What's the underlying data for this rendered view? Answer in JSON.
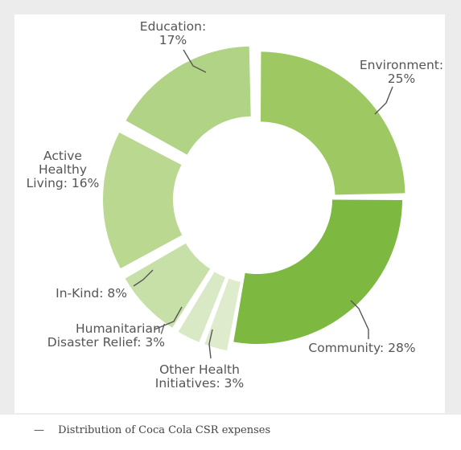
{
  "chart_data": {
    "type": "pie",
    "donut": true,
    "title": "",
    "slices": [
      {
        "label_lines": [
          "Environment:",
          "25%"
        ],
        "value": 25,
        "color": "#9dc862"
      },
      {
        "label_lines": [
          "Community: 28%"
        ],
        "value": 28,
        "color": "#7db940"
      },
      {
        "label_lines": [
          "Other Health",
          "Initiatives: 3%"
        ],
        "value": 3,
        "color": "#deebcc"
      },
      {
        "label_lines": [
          "Humanitarian/",
          "Disaster Relief: 3%"
        ],
        "value": 3,
        "color": "#d9e8c5"
      },
      {
        "label_lines": [
          "In-Kind: 8%"
        ],
        "value": 8,
        "color": "#c7e0a8"
      },
      {
        "label_lines": [
          "Active",
          "Healthy",
          "Living: 16%"
        ],
        "value": 16,
        "color": "#bad88f"
      },
      {
        "label_lines": [
          "Education:",
          "17%"
        ],
        "value": 17,
        "color": "#b1d386"
      }
    ]
  },
  "caption": {
    "dash": "—",
    "text": "Distribution of Coca Cola CSR expenses"
  }
}
